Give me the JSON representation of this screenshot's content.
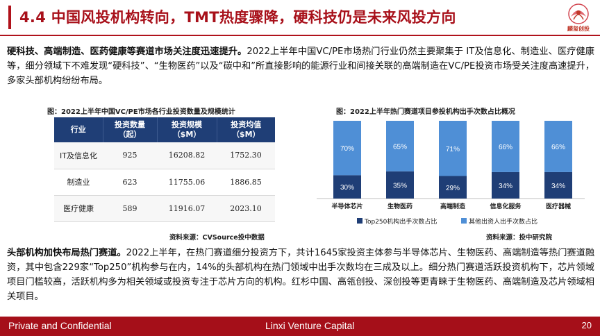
{
  "header": {
    "title": "4.4 中国风投机构转向，TMT热度骤降，硬科技仍是未来风投方向",
    "logo_text": "麟玺创投"
  },
  "para1": {
    "bold": "硬科技、高端制造、医药健康等赛道市场关注度迅速提升。",
    "text": "2022上半年中国VC/PE市场热门行业仍然主要聚集于 IT及信息化、制造业、医疗健康等，细分领域下不难发现“硬科技”、“生物医药”以及“碳中和”所直接影响的能源行业和间接关联的高端制造在VC/PE投资市场受关注度高速提升，多家头部机构纷纷布局。"
  },
  "table_caption": "图：2022上半年中国VC/PE市场各行业投资数量及规模统计",
  "table": {
    "headers": [
      "行业",
      "投资数量\n（起）",
      "投资规模\n（$M）",
      "投资均值\n（$M）"
    ],
    "rows": [
      [
        "IT及信息化",
        "925",
        "16208.82",
        "1752.30"
      ],
      [
        "制造业",
        "623",
        "11755.06",
        "1886.85"
      ],
      [
        "医疗健康",
        "589",
        "11916.07",
        "2023.10"
      ]
    ]
  },
  "table_source": "资料来源：CVSource投中数据",
  "chart_caption": "图：2022上半年热门赛道项目参投机构出手次数占比概况",
  "chart_source": "资料来源：投中研究院",
  "chart_data": {
    "type": "bar",
    "stacked": true,
    "categories": [
      "半导体芯片",
      "生物医药",
      "高端制造",
      "信息化服务",
      "医疗器械"
    ],
    "series": [
      {
        "name": "Top250机构出手次数占比",
        "values": [
          30,
          35,
          29,
          34,
          34
        ],
        "labels": [
          "30%",
          "35%",
          "29%",
          "34%",
          "34%"
        ],
        "color": "#1f3e76"
      },
      {
        "name": "其他出资人出手次数占比",
        "values": [
          70,
          65,
          71,
          66,
          66
        ],
        "labels": [
          "70%",
          "65%",
          "71%",
          "66%",
          "66%"
        ],
        "color": "#4f8fd6"
      }
    ],
    "ylim": [
      0,
      100
    ],
    "legend": "bottom"
  },
  "para2": {
    "bold": "头部机构加快布局热门赛道。",
    "text": "2022上半年，在热门赛道细分投资方下，共计1645家投资主体参与半导体芯片、生物医药、高端制造等热门赛道融资，其中包含229家“Top250”机构参与在内，14%的头部机构在热门领域中出手次数均在三成及以上。细分热门赛道活跃投资机构下，芯片领域项目门槛较高，活跃机构多为相关领域或投资专注于芯片方向的机构。红杉中国、高瓴创投、深创投等更青睐于生物医药、高端制造及芯片领域相关项目。"
  },
  "footer": {
    "left": "Private and Confidential",
    "middle": "Linxi Venture Capital",
    "page": "20"
  }
}
